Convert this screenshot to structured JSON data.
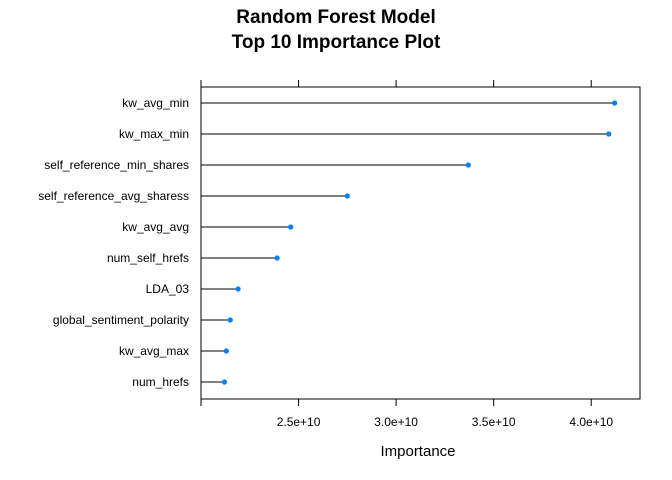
{
  "chart_data": {
    "type": "dotplot",
    "title": "Random Forest Model",
    "subtitle": "Top 10 Importance Plot",
    "xlabel": "Importance",
    "ylabel": "",
    "categories": [
      "kw_avg_min",
      "kw_max_min",
      "self_reference_min_shares",
      "self_reference_avg_sharess",
      "kw_avg_avg",
      "num_self_hrefs",
      "LDA_03",
      "global_sentiment_polarity",
      "kw_avg_max",
      "num_hrefs"
    ],
    "values": [
      41200000000,
      40900000000,
      33700000000,
      27500000000,
      24600000000,
      23900000000,
      21900000000,
      21500000000,
      21300000000,
      21200000000
    ],
    "xlim": [
      20000000000,
      42500000000
    ],
    "xticks": [
      25000000000,
      30000000000,
      35000000000,
      40000000000
    ],
    "xtick_labels": [
      "2.5e+10",
      "3.0e+10",
      "3.5e+10",
      "4.0e+10"
    ],
    "grid": false,
    "legend": "none",
    "colors": {
      "point": "#0080ff",
      "stem": "#000000",
      "frame": "#000000"
    }
  }
}
